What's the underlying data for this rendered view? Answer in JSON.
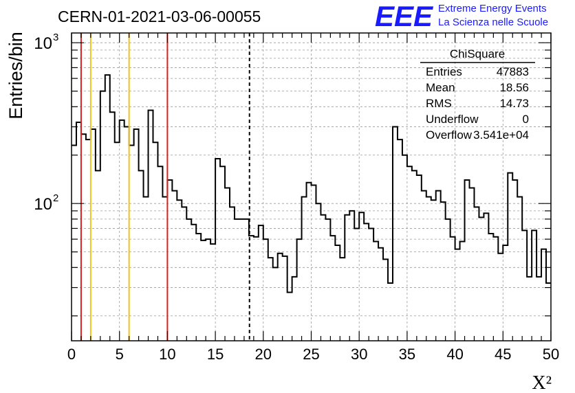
{
  "header": {
    "run_title": "CERN-01-2021-03-06-00055",
    "logo_text": "EEE",
    "logo_line1": "Extreme Energy Events",
    "logo_line2": "La Scienza nelle Scuole"
  },
  "stats_box": {
    "title": "ChiSquare",
    "rows": [
      {
        "label": "Entries",
        "value": "47883"
      },
      {
        "label": "Mean",
        "value": "18.56"
      },
      {
        "label": "RMS",
        "value": "14.73"
      },
      {
        "label": "Underflow",
        "value": "0"
      },
      {
        "label": "Overflow",
        "value": "3.541e+04"
      }
    ]
  },
  "colors": {
    "red_line": "#e0201c",
    "yellow_line": "#f2c21b",
    "logo_blue": "#1a1aff",
    "grid": "#999999"
  },
  "chart_data": {
    "type": "histogram",
    "xlabel": "X²",
    "ylabel": "Entries/bin",
    "xlim": [
      0,
      50
    ],
    "ylim": [
      14,
      1150
    ],
    "log_y": true,
    "grid": true,
    "x_ticks": [
      "0",
      "5",
      "10",
      "15",
      "20",
      "25",
      "30",
      "35",
      "40",
      "45",
      "50"
    ],
    "y_ticks": [
      {
        "value": 100,
        "base": "10",
        "exp": "2"
      },
      {
        "value": 1000,
        "base": "10",
        "exp": "3"
      }
    ],
    "bin_width": 0.5,
    "values": [
      230,
      320,
      270,
      250,
      290,
      160,
      500,
      630,
      370,
      240,
      330,
      300,
      230,
      290,
      160,
      110,
      380,
      240,
      170,
      110,
      140,
      120,
      105,
      95,
      80,
      74,
      65,
      59,
      60,
      56,
      190,
      170,
      125,
      95,
      80,
      80,
      80,
      63,
      62,
      73,
      60,
      46,
      40,
      49,
      47,
      28,
      35,
      60,
      110,
      135,
      130,
      100,
      85,
      80,
      63,
      55,
      46,
      85,
      90,
      70,
      88,
      75,
      70,
      58,
      53,
      45,
      32,
      300,
      250,
      200,
      170,
      160,
      150,
      120,
      110,
      105,
      120,
      102,
      80,
      62,
      52,
      58,
      140,
      125,
      95,
      82,
      87,
      65,
      62,
      49,
      55,
      155,
      140,
      110,
      68,
      35,
      68,
      35,
      52,
      32
    ],
    "vertical_lines": [
      {
        "x": 1,
        "color": "red",
        "style": "solid"
      },
      {
        "x": 2,
        "color": "yellow",
        "style": "solid"
      },
      {
        "x": 6,
        "color": "yellow",
        "style": "solid"
      },
      {
        "x": 10,
        "color": "red",
        "style": "solid"
      },
      {
        "x": 18.56,
        "color": "black",
        "style": "dashed"
      }
    ]
  }
}
